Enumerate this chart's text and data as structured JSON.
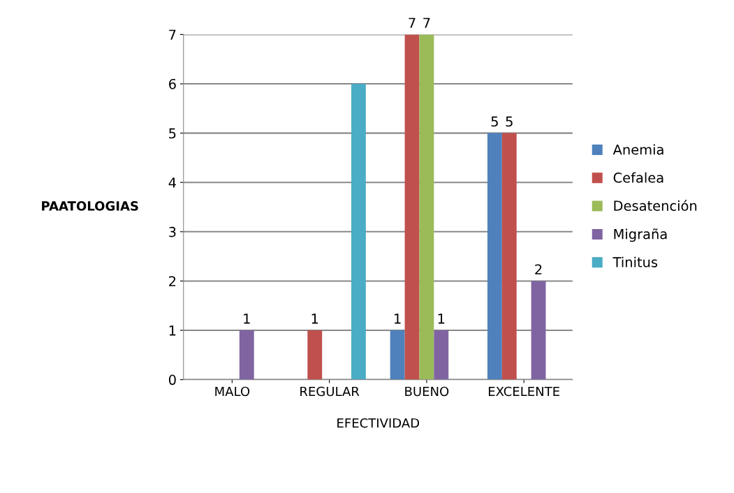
{
  "chart_data": {
    "type": "bar",
    "xlabel": "EFECTIVIDAD",
    "ylabel": "PAATOLOGIAS",
    "categories": [
      "MALO",
      "REGULAR",
      "BUENO",
      "EXCELENTE"
    ],
    "series": [
      {
        "name": "Anemia",
        "color": "#4f81bd",
        "values": [
          null,
          null,
          1,
          5
        ],
        "value_labels": [
          null,
          null,
          "1",
          "5"
        ]
      },
      {
        "name": "Cefalea",
        "color": "#c0504d",
        "values": [
          null,
          1,
          7,
          5
        ],
        "value_labels": [
          null,
          "1",
          "7",
          "5"
        ]
      },
      {
        "name": "Desatención",
        "color": "#9bbb59",
        "values": [
          null,
          null,
          7,
          null
        ],
        "value_labels": [
          null,
          null,
          "7",
          null
        ]
      },
      {
        "name": "Migraña",
        "color": "#8064a2",
        "values": [
          1,
          null,
          1,
          2
        ],
        "value_labels": [
          "1",
          null,
          "1",
          "2"
        ]
      },
      {
        "name": "Tinitus",
        "color": "#4bacc6",
        "values": [
          null,
          6,
          null,
          null
        ],
        "value_labels": [
          null,
          null,
          null,
          null
        ]
      }
    ],
    "ylim": [
      0,
      7
    ],
    "yticks": [
      0,
      1,
      2,
      3,
      4,
      5,
      6,
      7
    ],
    "grid": "y",
    "legend": "right"
  }
}
